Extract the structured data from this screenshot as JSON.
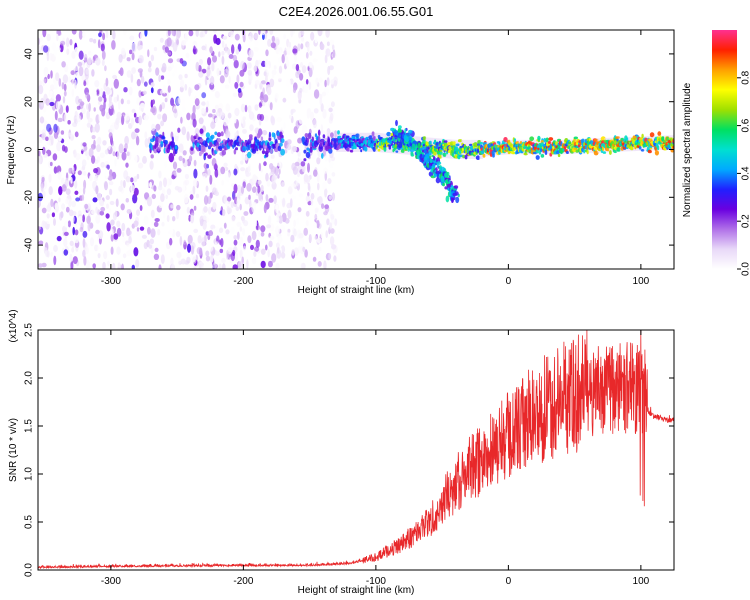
{
  "title": "C2E4.2026.001.06.55.G01",
  "chart_data": [
    {
      "type": "heatmap",
      "xlabel": "Height of straight line (km)",
      "ylabel": "Frequency (Hz)",
      "xlim": [
        -355,
        125
      ],
      "ylim": [
        -50,
        50
      ],
      "xticks": [
        -300,
        -200,
        -100,
        0,
        100
      ],
      "yticks": [
        -40,
        -20,
        0,
        20,
        40
      ],
      "colorbar": {
        "label": "Normalized spectral amplitude",
        "range": [
          0,
          1
        ],
        "ticks": [
          0.0,
          0.2,
          0.4,
          0.6,
          0.8
        ],
        "colormap": [
          "#ffffff",
          "#e8d8f8",
          "#b070e8",
          "#6a00e0",
          "#2020ff",
          "#00aaff",
          "#00e0d0",
          "#00e060",
          "#a0e000",
          "#ffff00",
          "#ffa000",
          "#ff2000",
          "#ff3090"
        ]
      },
      "ridge": {
        "x": [
          -130,
          -100,
          -80,
          -60,
          -40,
          -20,
          0,
          40,
          80,
          125
        ],
        "y": [
          3,
          3,
          2,
          1,
          0,
          0,
          1,
          1,
          2,
          3
        ]
      },
      "branch": {
        "x": [
          -85,
          -75,
          -65,
          -55,
          -45,
          -40
        ],
        "y": [
          8,
          4,
          -2,
          -8,
          -14,
          -20
        ]
      }
    },
    {
      "type": "line",
      "xlabel": "Height of straight line (km)",
      "ylabel": "SNR (10 * v/v)",
      "yscale_label": "(x10^4)",
      "xlim": [
        -355,
        125
      ],
      "ylim": [
        0,
        2.5
      ],
      "xticks": [
        -300,
        -200,
        -100,
        0,
        100
      ],
      "yticks": [
        0.0,
        0.5,
        1.0,
        1.5,
        2.0,
        2.5
      ],
      "color": "#e8282a",
      "envelope": {
        "x": [
          -355,
          -300,
          -200,
          -150,
          -120,
          -100,
          -80,
          -60,
          -40,
          -20,
          0,
          20,
          40,
          60,
          80,
          100,
          110,
          125
        ],
        "y": [
          0.02,
          0.03,
          0.04,
          0.04,
          0.06,
          0.12,
          0.25,
          0.45,
          0.8,
          1.05,
          1.25,
          1.45,
          1.6,
          1.7,
          1.75,
          1.75,
          1.6,
          1.55
        ]
      }
    }
  ]
}
